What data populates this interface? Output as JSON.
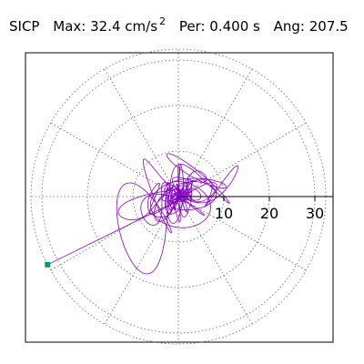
{
  "header": {
    "station": "SICP",
    "max_label": "Max:",
    "max_value": "32.4",
    "max_unit": "cm/s",
    "max_unit_exp": "2",
    "per_label": "Per:",
    "per_value": "0.400 s",
    "ang_label": "Ang:",
    "ang_value": "207.5"
  },
  "chart_data": {
    "type": "polar-orbit",
    "radial_ticks": [
      10,
      20,
      30
    ],
    "rlim": [
      0,
      32.4
    ],
    "grid": true,
    "grid_style": "dotted",
    "angular_spokes_deg": [
      0,
      30,
      60,
      90,
      120,
      150,
      180,
      210,
      240,
      270,
      300,
      330
    ],
    "peak_amplitude": 32.4,
    "peak_angle_deg": 207.5,
    "orbit_color": "#8800cc",
    "marker_color": "#009977",
    "marker": {
      "r": 32.4,
      "angle_deg": 207.5
    }
  }
}
